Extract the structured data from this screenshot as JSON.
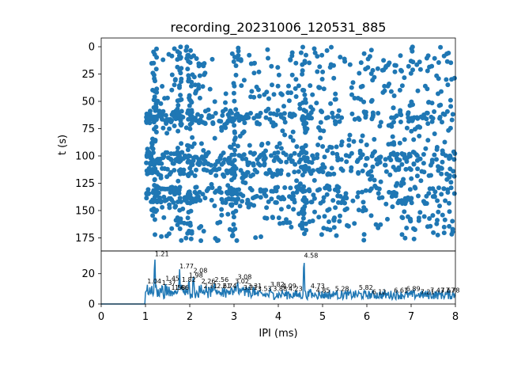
{
  "chart_data": [
    {
      "type": "scatter",
      "title": "recording_20231006_120531_885",
      "xlabel": "",
      "ylabel": "t (s)",
      "xlim": [
        0,
        8
      ],
      "ylim": [
        187,
        -8
      ],
      "y_inverted": true,
      "grid": false,
      "x_ticks": [],
      "y_ticks": [
        "0",
        "25",
        "50",
        "75",
        "100",
        "125",
        "150",
        "175"
      ],
      "color": "#1f77b4",
      "description_note": "",
      "dense_bands_t": [
        62,
        67,
        100,
        105,
        115,
        132,
        140
      ],
      "dense_columns_ipi": [
        1.21,
        1.77,
        2.0,
        3.0,
        4.58
      ],
      "x_start": 1.0
    },
    {
      "type": "line",
      "title": "",
      "xlabel": "IPI (ms)",
      "ylabel": "",
      "xlim": [
        0,
        8
      ],
      "ylim": [
        0,
        35
      ],
      "grid": false,
      "x_ticks": [
        "0",
        "1",
        "2",
        "3",
        "4",
        "5",
        "6",
        "7",
        "8"
      ],
      "y_ticks": [
        "0",
        "20"
      ],
      "color": "#1f77b4",
      "peaks": [
        {
          "x": 1.04,
          "y": 13,
          "label": "1.04"
        },
        {
          "x": 1.21,
          "y": 31,
          "label": "1.21"
        },
        {
          "x": 1.37,
          "y": 12,
          "label": "1.37"
        },
        {
          "x": 1.45,
          "y": 15,
          "label": "1.45"
        },
        {
          "x": 1.58,
          "y": 9,
          "label": "1.58"
        },
        {
          "x": 1.66,
          "y": 9,
          "label": "1.66"
        },
        {
          "x": 1.77,
          "y": 23,
          "label": "1.77"
        },
        {
          "x": 1.82,
          "y": 14,
          "label": "1.82"
        },
        {
          "x": 1.98,
          "y": 17,
          "label": "1.98"
        },
        {
          "x": 2.08,
          "y": 20,
          "label": "2.08"
        },
        {
          "x": 2.26,
          "y": 13,
          "label": "2.26"
        },
        {
          "x": 2.31,
          "y": 10,
          "label": "2.31"
        },
        {
          "x": 2.56,
          "y": 14,
          "label": "2.56"
        },
        {
          "x": 2.61,
          "y": 10,
          "label": "2.61"
        },
        {
          "x": 2.74,
          "y": 10,
          "label": "2.74"
        },
        {
          "x": 3.02,
          "y": 13,
          "label": "3.02"
        },
        {
          "x": 3.08,
          "y": 16,
          "label": "3.08"
        },
        {
          "x": 3.21,
          "y": 9,
          "label": "3.21"
        },
        {
          "x": 3.31,
          "y": 10,
          "label": "3.31"
        },
        {
          "x": 3.53,
          "y": 8,
          "label": "3.53"
        },
        {
          "x": 3.82,
          "y": 11,
          "label": "3.82"
        },
        {
          "x": 3.88,
          "y": 8,
          "label": "3.88"
        },
        {
          "x": 4.09,
          "y": 10,
          "label": "4.09"
        },
        {
          "x": 4.23,
          "y": 8,
          "label": "4.23"
        },
        {
          "x": 4.58,
          "y": 30,
          "label": "4.58"
        },
        {
          "x": 4.73,
          "y": 10,
          "label": "4.73"
        },
        {
          "x": 4.85,
          "y": 7,
          "label": "4.85"
        },
        {
          "x": 5.28,
          "y": 8,
          "label": "5.28"
        },
        {
          "x": 5.82,
          "y": 9,
          "label": "5.82"
        },
        {
          "x": 6.12,
          "y": 6,
          "label": "6.12"
        },
        {
          "x": 6.61,
          "y": 7,
          "label": "6.61"
        },
        {
          "x": 6.89,
          "y": 8,
          "label": "6.89"
        },
        {
          "x": 7.21,
          "y": 6,
          "label": "7.21"
        },
        {
          "x": 7.43,
          "y": 7,
          "label": "7.43"
        },
        {
          "x": 7.67,
          "y": 7,
          "label": "7.67"
        },
        {
          "x": 7.78,
          "y": 7,
          "label": "7.78"
        }
      ]
    }
  ]
}
